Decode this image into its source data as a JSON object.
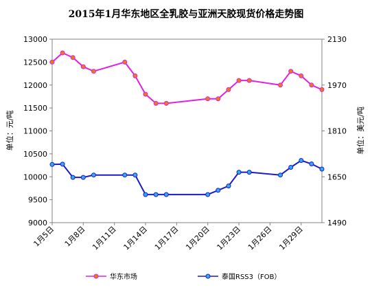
{
  "chart_data": {
    "type": "line",
    "title": "2015年1月华东地区全乳胶与亚洲天胶现货价格走势图",
    "ylabel_left": "单位：元/吨",
    "ylabel_right": "单位：美元/吨",
    "x_tick_labels": [
      "1月5日",
      "1月8日",
      "1月11日",
      "1月14日",
      "1月17日",
      "1月20日",
      "1月23日",
      "1月26日",
      "1月29日"
    ],
    "x_tick_days": [
      5,
      8,
      11,
      14,
      17,
      20,
      23,
      26,
      29
    ],
    "xlim": [
      5,
      31
    ],
    "ylim_left": [
      9000,
      13000
    ],
    "ylim_right": [
      1490,
      2130
    ],
    "yticks_left": [
      "9000",
      "9500",
      "10000",
      "10500",
      "11000",
      "11500",
      "12000",
      "12500",
      "13000"
    ],
    "yticks_right": [
      "1490",
      "1650",
      "1810",
      "1970",
      "2130"
    ],
    "grid": false,
    "legend_position": "bottom",
    "series": [
      {
        "name": "华东市场",
        "axis": "left",
        "color": "#e020e0",
        "marker_color": "#e87a1a",
        "x": [
          5,
          6,
          7,
          8,
          9,
          12,
          13,
          14,
          15,
          16,
          20,
          21,
          22,
          23,
          24,
          27,
          28,
          29,
          30,
          31
        ],
        "y": [
          12500,
          12700,
          12600,
          12400,
          12300,
          12500,
          12200,
          11800,
          11600,
          11600,
          11700,
          11700,
          11900,
          12100,
          12100,
          12000,
          12300,
          12200,
          12000,
          11900
        ]
      },
      {
        "name": "泰国RSS3（FOB）",
        "axis": "right",
        "color": "#1a1acc",
        "marker_color": "#33aaee",
        "x": [
          5,
          6,
          7,
          8,
          9,
          12,
          13,
          14,
          15,
          16,
          20,
          21,
          22,
          23,
          24,
          27,
          28,
          29,
          30,
          31
        ],
        "y": [
          1693,
          1694,
          1648,
          1648,
          1656,
          1656,
          1656,
          1588,
          1588,
          1588,
          1588,
          1603,
          1618,
          1666,
          1666,
          1656,
          1683,
          1707,
          1695,
          1677
        ]
      }
    ]
  }
}
